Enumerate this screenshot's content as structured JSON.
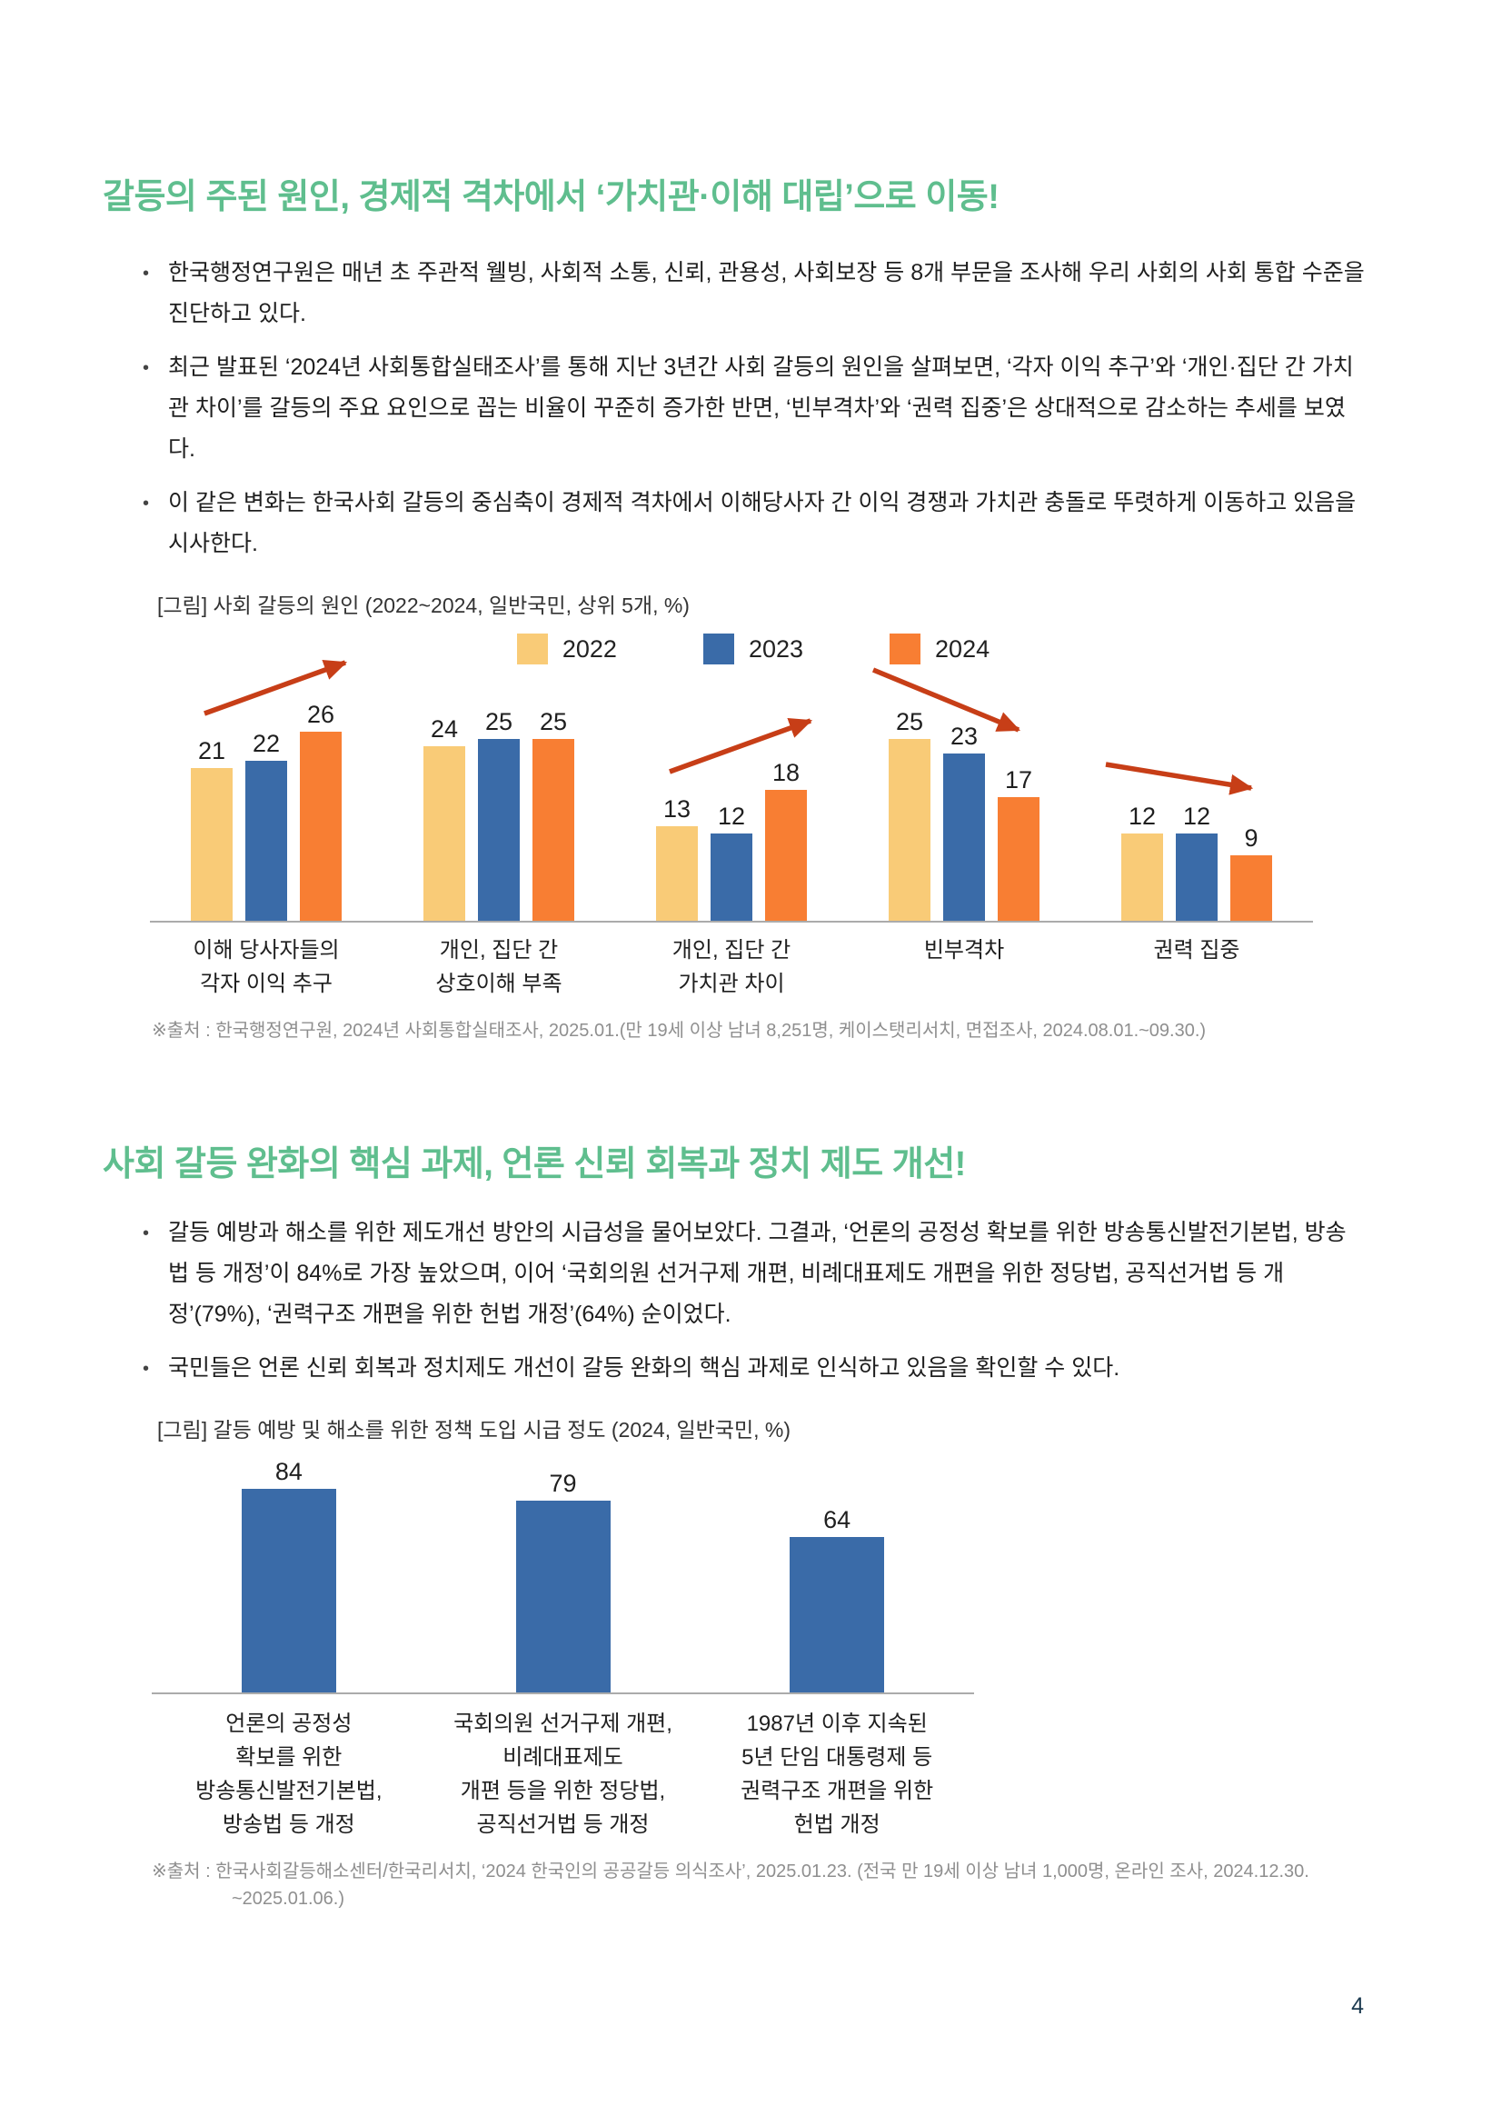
{
  "page": {
    "number": "4"
  },
  "colors": {
    "accent_green": "#5FBE8E",
    "arrow_red": "#C73E17",
    "axis_gray": "#ABABAB",
    "source_gray": "#8F8F8F",
    "bar_yellow_2022": "#F9CB77",
    "bar_blue_2023": "#3A6BA8",
    "bar_orange_2024": "#F87E33",
    "page_number_navy": "#1C3A50"
  },
  "section1": {
    "title": "갈등의 주된 원인, 경제적 격차에서 ‘가치관·이해 대립’으로 이동!",
    "bullets": [
      "한국행정연구원은 매년 초 주관적 웰빙, 사회적 소통, 신뢰, 관용성, 사회보장 등 8개 부문을 조사해 우리 사회의 사회 통합 수준을 진단하고 있다.",
      "최근 발표된 ‘2024년 사회통합실태조사’를 통해 지난 3년간 사회 갈등의 원인을 살펴보면, ‘각자 이익 추구’와 ‘개인·집단 간 가치관 차이’를 갈등의 주요 요인으로 꼽는 비율이 꾸준히 증가한 반면, ‘빈부격차’와 ‘권력 집중’은 상대적으로 감소하는 추세를 보였다.",
      "이 같은 변화는 한국사회 갈등의 중심축이 경제적 격차에서 이해당사자 간 이익 경쟁과 가치관 충돌로 뚜렷하게 이동하고 있음을 시사한다."
    ],
    "chart_caption": "[그림] 사회 갈등의 원인 (2022~2024, 일반국민, 상위 5개, %)",
    "source": "※출처 : 한국행정연구원, 2024년 사회통합실태조사, 2025.01.(만 19세 이상 남녀 8,251명, 케이스탯리서치, 면접조사, 2024.08.01.~09.30.)"
  },
  "section2": {
    "title": "사회 갈등 완화의 핵심 과제, 언론 신뢰 회복과 정치 제도 개선!",
    "bullets": [
      "갈등 예방과 해소를 위한 제도개선 방안의 시급성을 물어보았다. 그결과, ‘언론의 공정성 확보를 위한 방송통신발전기본법, 방송법 등 개정’이 84%로 가장 높았으며, 이어 ‘국회의원 선거구제 개편, 비례대표제도 개편을 위한 정당법, 공직선거법 등 개정’(79%), ‘권력구조 개편을 위한 헌법 개정’(64%) 순이었다.",
      "국민들은 언론 신뢰 회복과 정치제도 개선이 갈등 완화의 핵심 과제로 인식하고 있음을 확인할 수 있다."
    ],
    "chart_caption": "[그림] 갈등 예방 및 해소를 위한 정책 도입 시급 정도 (2024, 일반국민, %)",
    "source_line1": "※출처 : 한국사회갈등해소센터/한국리서치, ‘2024 한국인의 공공갈등 의식조사’, 2025.01.23. (전국 만 19세 이상 남녀 1,000명, 온라인 조사, 2024.12.30.",
    "source_line2": "~2025.01.06.)"
  },
  "chart_data": [
    {
      "type": "bar",
      "title": "사회 갈등의 원인 (2022~2024, 일반국민, 상위 5개, %)",
      "categories": [
        "이해 당사자들의\n각자 이익 추구",
        "개인, 집단 간\n상호이해 부족",
        "개인, 집단 간\n가치관 차이",
        "빈부격차",
        "권력 집중"
      ],
      "series": [
        {
          "name": "2022",
          "color": "#F9CB77",
          "values": [
            21,
            24,
            13,
            25,
            12
          ]
        },
        {
          "name": "2023",
          "color": "#3A6BA8",
          "values": [
            22,
            25,
            12,
            23,
            12
          ]
        },
        {
          "name": "2024",
          "color": "#F87E33",
          "values": [
            26,
            25,
            18,
            17,
            9
          ]
        }
      ],
      "ylim": [
        0,
        30
      ],
      "grid": false,
      "legend_position": "top",
      "trend_arrows": [
        {
          "category": 0,
          "direction": "up"
        },
        {
          "category": 2,
          "direction": "up"
        },
        {
          "category": 3,
          "direction": "down"
        },
        {
          "category": 4,
          "direction": "down"
        }
      ]
    },
    {
      "type": "bar",
      "title": "갈등 예방 및 해소를 위한 정책 도입 시급 정도 (2024, 일반국민, %)",
      "categories": [
        "언론의 공정성\n확보를 위한\n방송통신발전기본법,\n방송법 등 개정",
        "국회의원 선거구제 개편,\n비례대표제도\n개편 등을 위한 정당법,\n공직선거법 등 개정",
        "1987년 이후 지속된\n5년 단임 대통령제 등\n권력구조 개편을 위한\n헌법 개정"
      ],
      "values": [
        84,
        79,
        64
      ],
      "bar_color": "#3A6BA8",
      "ylim": [
        0,
        100
      ],
      "grid": false
    }
  ]
}
